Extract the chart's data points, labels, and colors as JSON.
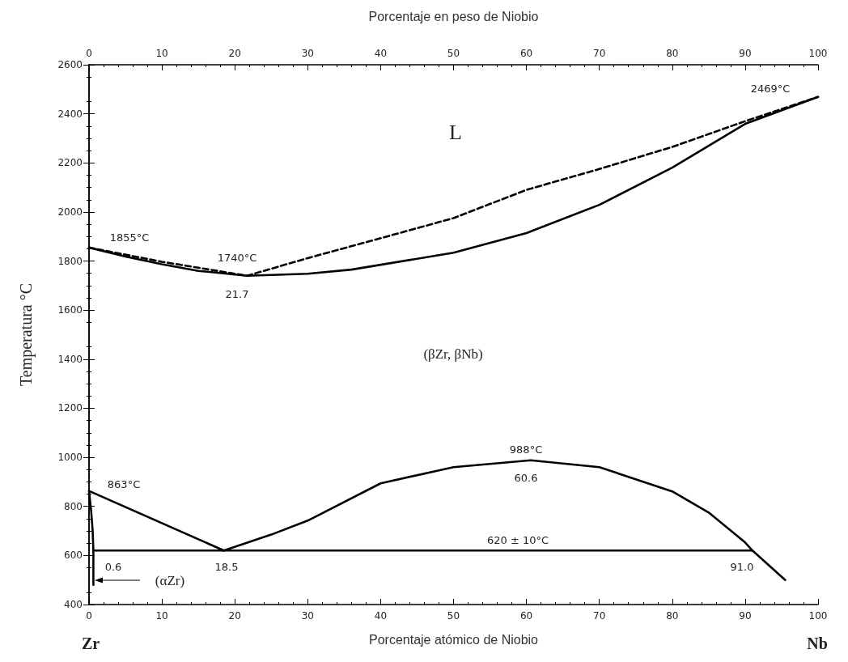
{
  "chart_data": {
    "type": "line",
    "xlabel": "Porcentaje atómico de Niobio",
    "x2label": "Porcentaje en peso de Niobio",
    "ylabel": "Temperatura °C",
    "xlim": [
      0,
      100
    ],
    "xticks": [
      0,
      10,
      20,
      30,
      40,
      50,
      60,
      70,
      80,
      90,
      100
    ],
    "x2lim": [
      0,
      100
    ],
    "x2ticks": [
      0,
      10,
      20,
      30,
      40,
      50,
      60,
      70,
      80,
      90,
      100
    ],
    "ylim": [
      400,
      2600
    ],
    "yticks": [
      400,
      600,
      800,
      1000,
      1200,
      1400,
      1600,
      1800,
      2000,
      2200,
      2400,
      2600
    ],
    "grid": false,
    "marker": "none",
    "series": [
      {
        "color": "#000000",
        "line_style": "dashed",
        "x": [
          0,
          10,
          21.7,
          30,
          40,
          50,
          60,
          70,
          80,
          90,
          100
        ],
        "values": [
          1855,
          1797,
          1740,
          1812,
          1893,
          1975,
          2090,
          2175,
          2265,
          2370,
          2469
        ]
      },
      {
        "color": "#000000",
        "line_style": "solid",
        "x": [
          0,
          5,
          10,
          15,
          21.7,
          30,
          36,
          50,
          60,
          70,
          80,
          90,
          100
        ],
        "values": [
          1855,
          1818,
          1787,
          1760,
          1740,
          1748,
          1765,
          1834,
          1914,
          2029,
          2181,
          2359,
          2469
        ]
      },
      {
        "color": "#000000",
        "line_style": "solid",
        "x": [
          18.5,
          25,
          30,
          40,
          50,
          60.6,
          70,
          80,
          85,
          90,
          91,
          95.5
        ],
        "values": [
          620,
          685,
          742,
          894,
          960,
          988,
          960,
          861,
          775,
          653,
          620,
          500
        ]
      },
      {
        "color": "#000000",
        "line_style": "solid",
        "x": [
          0,
          0.3,
          0.5,
          0.6,
          0.6
        ],
        "values": [
          863,
          780,
          700,
          620,
          480
        ]
      },
      {
        "color": "#000000",
        "line_style": "solid",
        "x": [
          0,
          18.5
        ],
        "values": [
          863,
          620
        ]
      },
      {
        "color": "#000000",
        "line_style": "solid",
        "x": [
          0.6,
          91
        ],
        "values": [
          620,
          620
        ]
      }
    ],
    "annotations": [
      "L",
      "1855°C",
      "1740°C",
      "21.7",
      "2469°C",
      "(βZr, βNb)",
      "988°C",
      "60.6",
      "863°C",
      "620 ± 10°C",
      "0.6",
      "18.5",
      "91.0",
      "(αZr)",
      "Zr",
      "Nb"
    ]
  }
}
